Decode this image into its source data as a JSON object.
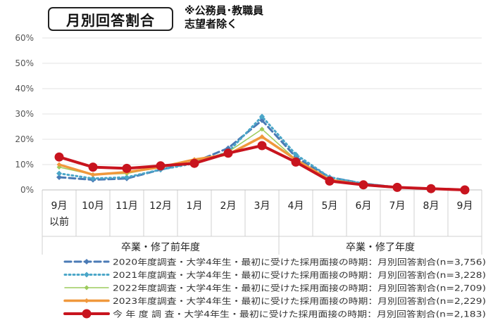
{
  "header": {
    "title": "月別回答割合",
    "note_line1": "※公務員･教職員",
    "note_line2": "志望者除く"
  },
  "chart_data": {
    "type": "line",
    "title": "月別回答割合",
    "categories": [
      "9月",
      "10月",
      "11月",
      "12月",
      "1月",
      "2月",
      "3月",
      "4月",
      "5月",
      "6月",
      "7月",
      "8月",
      "9月"
    ],
    "category_sub": [
      "以前",
      "",
      "",
      "",
      "",
      "",
      "",
      "",
      "",
      "",
      "",
      "",
      ""
    ],
    "groups": [
      {
        "label": "卒業・修了前年度",
        "from": 0,
        "to": 6
      },
      {
        "label": "卒業・修了年度",
        "from": 7,
        "to": 12
      }
    ],
    "y_ticks": [
      "0%",
      "10%",
      "20%",
      "30%",
      "40%",
      "50%",
      "60%"
    ],
    "ylim": [
      0,
      60
    ],
    "grid": true,
    "legend_position": "bottom",
    "series": [
      {
        "name": "2020年度調査・大学4年生・最初に受けた採用面接の時期：月別回答割合(n=3,756)",
        "color": "#4a7ab5",
        "style": "dashed",
        "values": [
          5,
          4,
          4.5,
          8,
          11,
          16.5,
          27.5,
          13,
          5,
          2.5,
          1,
          0.5,
          0
        ]
      },
      {
        "name": "2021年度調査・大学4年生・最初に受けた採用面接の時期：月別回答割合(n=3,228)",
        "color": "#4aa6c8",
        "style": "dotted",
        "values": [
          6.5,
          4.5,
          5,
          8,
          10.5,
          15,
          29,
          14,
          5,
          2.5,
          1,
          0.5,
          0
        ]
      },
      {
        "name": "2022年度調査・大学4年生・最初に受けた採用面接の時期：月別回答割合(n=2,709)",
        "color": "#9ccb5c",
        "style": "solid-thin",
        "values": [
          9,
          6,
          6.5,
          9,
          11,
          15,
          24,
          12,
          4,
          2,
          1,
          0.5,
          0
        ]
      },
      {
        "name": "2023年度調査・大学4年生・最初に受けた採用面接の時期：月別回答割合(n=2,229)",
        "color": "#f0983c",
        "style": "solid",
        "values": [
          10,
          6,
          7,
          9,
          12,
          14,
          21,
          12,
          4,
          2,
          1,
          0.5,
          0
        ]
      },
      {
        "name": "今 年 度 調 査・大学4年生・最初に受けた採用面接の時期：月別回答割合(n=2,183)",
        "color": "#c8141e",
        "style": "bold",
        "values": [
          13,
          9,
          8.5,
          9.5,
          10.5,
          14.5,
          17.5,
          11,
          3.5,
          2,
          1,
          0.5,
          0
        ]
      }
    ]
  }
}
